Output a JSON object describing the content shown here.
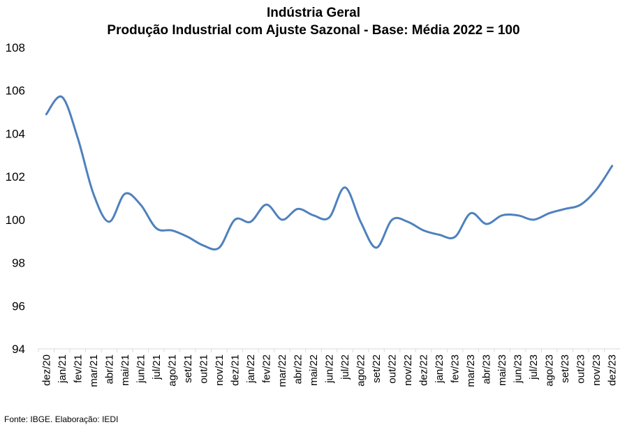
{
  "chart_data": {
    "type": "line",
    "title": "Indústria Geral",
    "subtitle": "Produção Industrial com Ajuste Sazonal - Base: Média 2022 = 100",
    "xlabel": "",
    "ylabel": "",
    "ylim": [
      94,
      108
    ],
    "yticks": [
      94,
      96,
      98,
      100,
      102,
      104,
      106,
      108
    ],
    "grid": false,
    "legend": "none",
    "line_color": "#4F81BD",
    "categories": [
      "dez/20",
      "jan/21",
      "fev/21",
      "mar/21",
      "abr/21",
      "mai/21",
      "jun/21",
      "jul/21",
      "ago/21",
      "set/21",
      "out/21",
      "nov/21",
      "dez/21",
      "jan/22",
      "fev/22",
      "mar/22",
      "abr/22",
      "mai/22",
      "jun/22",
      "jul/22",
      "ago/22",
      "set/22",
      "out/22",
      "nov/22",
      "dez/22",
      "jan/23",
      "fev/23",
      "mar/23",
      "abr/23",
      "mai/23",
      "jun/23",
      "jul/23",
      "ago/23",
      "set/23",
      "out/23",
      "nov/23",
      "dez/23"
    ],
    "series": [
      {
        "values": [
          104.9,
          105.7,
          103.8,
          101.2,
          99.9,
          101.2,
          100.7,
          99.6,
          99.5,
          99.2,
          98.8,
          98.7,
          100.0,
          99.9,
          100.7,
          100.0,
          100.5,
          100.2,
          100.1,
          101.5,
          99.9,
          98.7,
          100.0,
          99.9,
          99.5,
          99.3,
          99.2,
          100.3,
          99.8,
          100.2,
          100.2,
          100.0,
          100.3,
          100.5,
          100.7,
          101.4,
          102.5
        ]
      }
    ]
  },
  "footer": {
    "source": "Fonte: IBGE. Elaboração: IEDI"
  }
}
